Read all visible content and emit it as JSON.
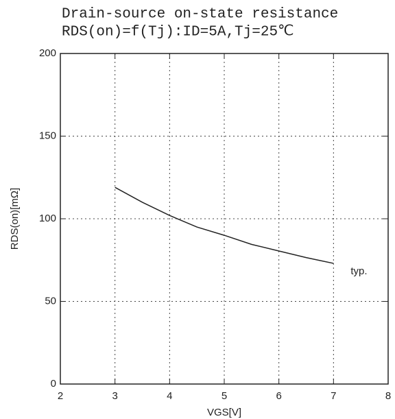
{
  "chart_data": {
    "type": "line",
    "title": "Drain-source on-state resistance",
    "subtitle": "RDS(on)=f(Tj):ID=5A,Tj=25℃",
    "x_label": "VGS[V]",
    "y_label": "RDS(on)[mΩ]",
    "x": [
      3,
      3.5,
      4,
      4.5,
      5,
      5.5,
      6,
      6.5,
      7
    ],
    "series": [
      {
        "name": "typ.",
        "color": "#222222",
        "values": [
          119,
          110,
          102,
          95,
          90,
          84.5,
          80.5,
          76.5,
          73
        ]
      }
    ],
    "xlim": [
      2,
      8
    ],
    "xticks": [
      2,
      3,
      4,
      5,
      6,
      7,
      8
    ],
    "ylim": [
      0,
      200
    ],
    "yticks": [
      0,
      50,
      100,
      150,
      200
    ],
    "grid": true
  }
}
